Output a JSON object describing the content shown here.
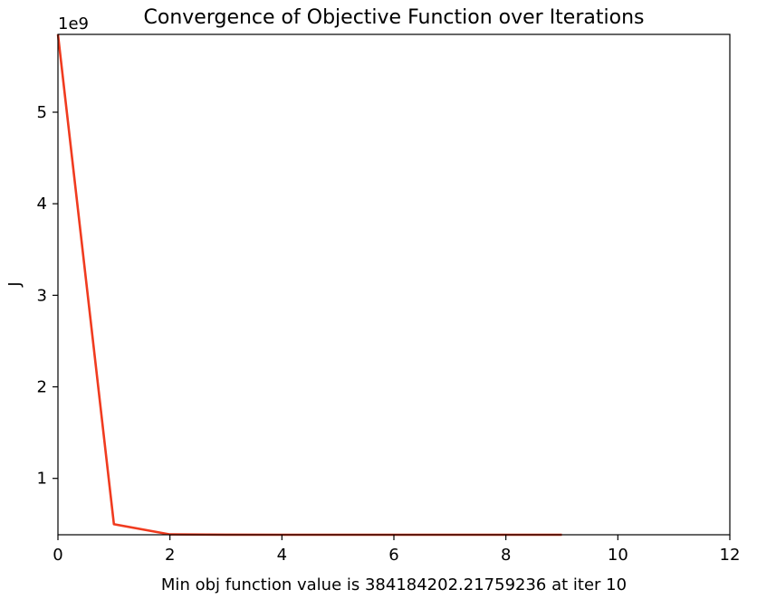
{
  "chart_data": {
    "type": "line",
    "title": "Convergence of Objective Function over Iterations",
    "xlabel": "Min obj function value is 384184202.21759236 at iter 10",
    "ylabel": "J",
    "y_offset_text": "1e9",
    "x": [
      0,
      1,
      2,
      3,
      4,
      5,
      6,
      7,
      8,
      9
    ],
    "series": [
      {
        "values": [
          5850000000.0,
          500000000.0,
          388000000.0,
          385000000.0,
          384200000.0,
          384200000.0,
          384200000.0,
          384200000.0,
          384200000.0,
          384200000.0
        ],
        "color": "#f03b1f"
      }
    ],
    "xlim": [
      0,
      12
    ],
    "ylim": [
      384200000.0,
      5850000000.0
    ],
    "x_ticks": [
      "0",
      "2",
      "4",
      "6",
      "8",
      "10",
      "12"
    ],
    "x_tick_values": [
      0,
      2,
      4,
      6,
      8,
      10,
      12
    ],
    "y_ticks": [
      "1",
      "2",
      "3",
      "4",
      "5"
    ],
    "y_tick_values": [
      1000000000.0,
      2000000000.0,
      3000000000.0,
      4000000000.0,
      5000000000.0
    ],
    "grid": false,
    "legend": "none"
  }
}
